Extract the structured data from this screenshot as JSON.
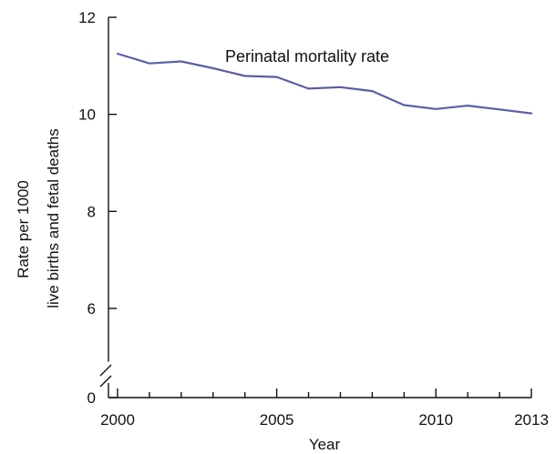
{
  "chart_data": {
    "type": "line",
    "title": "",
    "xlabel": "Year",
    "ylabel_lines": [
      "Rate per 1000",
      "live births and fetal deaths"
    ],
    "xlim": [
      2000,
      2013
    ],
    "ylim": [
      0,
      12
    ],
    "axis_break": true,
    "grid": false,
    "x_ticks": [
      2000,
      2005,
      2010,
      2013
    ],
    "y_ticks": [
      0,
      6,
      8,
      10,
      12
    ],
    "x_tick_labels": [
      "2000",
      "2005",
      "2010",
      "2013"
    ],
    "y_tick_labels": [
      "0",
      "6",
      "8",
      "10",
      "12"
    ],
    "series": [
      {
        "name": "Perinatal mortality rate",
        "color": "#5b5ea6",
        "x": [
          2000,
          2001,
          2002,
          2003,
          2004,
          2005,
          2006,
          2007,
          2008,
          2009,
          2010,
          2011,
          2012,
          2013
        ],
        "y": [
          11.25,
          11.05,
          11.09,
          10.95,
          10.79,
          10.77,
          10.53,
          10.56,
          10.48,
          10.19,
          10.11,
          10.18,
          10.1,
          10.02
        ]
      }
    ]
  }
}
